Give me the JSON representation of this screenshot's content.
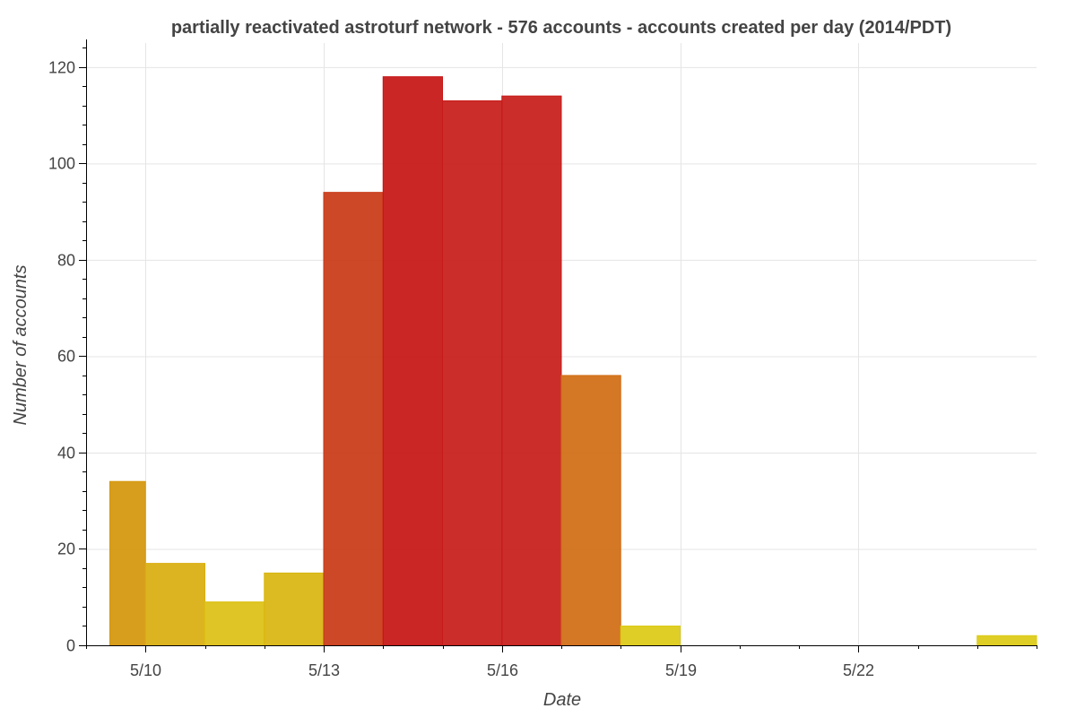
{
  "chart_data": {
    "type": "bar",
    "title": "partially reactivated astroturf network - 576 accounts - accounts created per day (2014/PDT)",
    "xlabel": "Date",
    "ylabel": "Number of accounts",
    "x_tick_labels": [
      {
        "day": 10,
        "label": "5/10"
      },
      {
        "day": 13,
        "label": "5/13"
      },
      {
        "day": 16,
        "label": "5/16"
      },
      {
        "day": 19,
        "label": "5/19"
      },
      {
        "day": 22,
        "label": "5/22"
      }
    ],
    "y_ticks": [
      0,
      20,
      40,
      60,
      80,
      100,
      120
    ],
    "xlim": [
      9.0,
      25.0
    ],
    "ylim": [
      0,
      125
    ],
    "grid": true,
    "bars": [
      {
        "date": "5/9",
        "start": 9.4,
        "end": 10.0,
        "value": 34,
        "color": "#d4960a"
      },
      {
        "date": "5/10",
        "start": 10.0,
        "end": 11.0,
        "value": 17,
        "color": "#d9ae0e"
      },
      {
        "date": "5/11",
        "start": 11.0,
        "end": 12.0,
        "value": 9,
        "color": "#dcc012"
      },
      {
        "date": "5/12",
        "start": 12.0,
        "end": 13.0,
        "value": 15,
        "color": "#d9b50f"
      },
      {
        "date": "5/13",
        "start": 13.0,
        "end": 14.0,
        "value": 94,
        "color": "#c93815"
      },
      {
        "date": "5/14",
        "start": 14.0,
        "end": 15.0,
        "value": 118,
        "color": "#c71414"
      },
      {
        "date": "5/15",
        "start": 15.0,
        "end": 16.0,
        "value": 113,
        "color": "#c71b18"
      },
      {
        "date": "5/16",
        "start": 16.0,
        "end": 17.0,
        "value": 114,
        "color": "#c71b18"
      },
      {
        "date": "5/17",
        "start": 17.0,
        "end": 18.0,
        "value": 56,
        "color": "#d06c12"
      },
      {
        "date": "5/18",
        "start": 18.0,
        "end": 19.0,
        "value": 4,
        "color": "#dcca14"
      },
      {
        "date": "5/19",
        "start": 19.0,
        "end": 20.0,
        "value": 0,
        "color": "#dcca14"
      },
      {
        "date": "5/20",
        "start": 20.0,
        "end": 21.0,
        "value": 0,
        "color": "#dcca14"
      },
      {
        "date": "5/21",
        "start": 21.0,
        "end": 22.0,
        "value": 0,
        "color": "#dcca14"
      },
      {
        "date": "5/22",
        "start": 22.0,
        "end": 23.0,
        "value": 0,
        "color": "#dcca14"
      },
      {
        "date": "5/23",
        "start": 23.0,
        "end": 24.0,
        "value": 0,
        "color": "#dcca14"
      },
      {
        "date": "5/24",
        "start": 24.0,
        "end": 25.0,
        "value": 2,
        "color": "#dcca14"
      }
    ]
  }
}
